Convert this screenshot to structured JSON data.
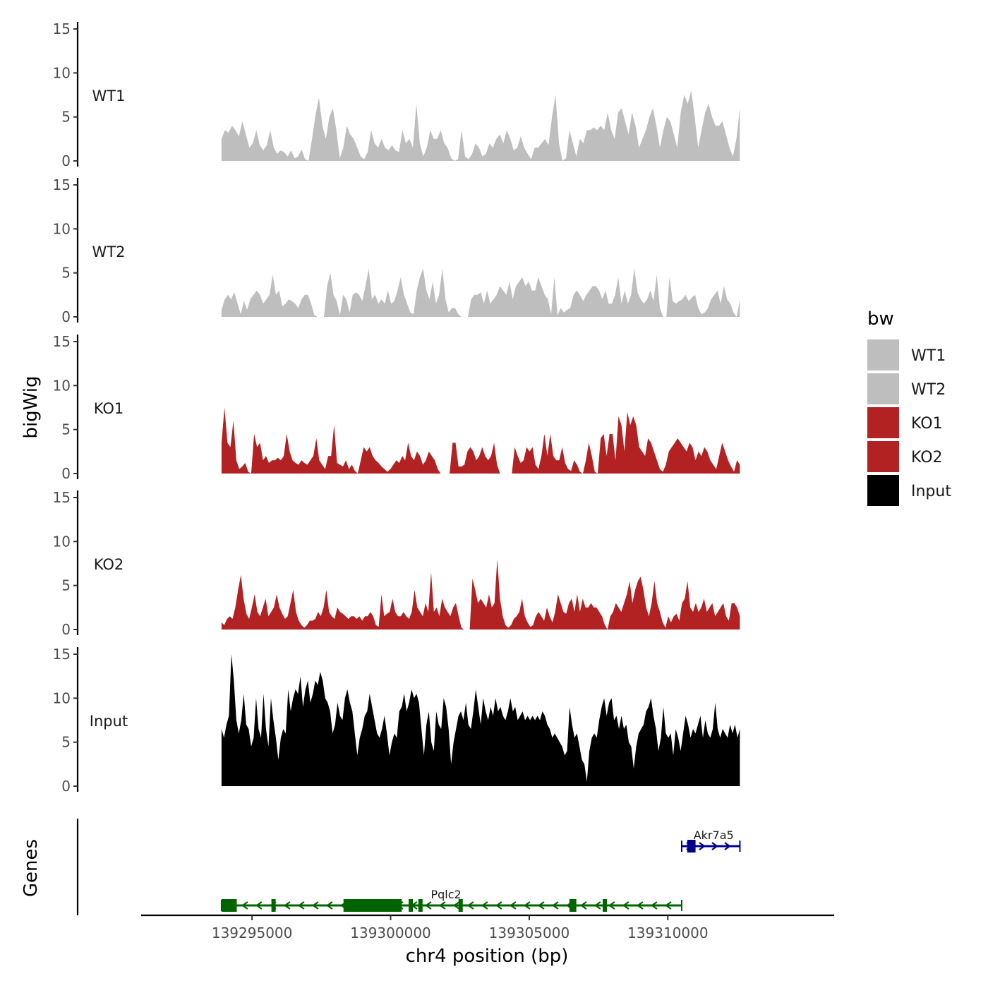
{
  "chart_data": {
    "type": "area",
    "y_axis_title": "bigWig",
    "x_axis_title": "chr4 position (bp)",
    "genes_axis_title": "Genes",
    "xlim": [
      139291000,
      139316000
    ],
    "data_range": [
      139293900,
      139312600
    ],
    "x_ticks": [
      139295000,
      139300000,
      139305000,
      139310000
    ],
    "x_tick_labels": [
      "139295000",
      "139300000",
      "139305000",
      "139310000"
    ],
    "ylim": [
      0,
      15
    ],
    "y_ticks": [
      0,
      5,
      10,
      15
    ],
    "y_tick_labels": [
      "0",
      "5",
      "10",
      "15"
    ],
    "legend": {
      "title": "bw",
      "entries": [
        {
          "label": "WT1",
          "color": "#bebebe"
        },
        {
          "label": "WT2",
          "color": "#bebebe"
        },
        {
          "label": "KO1",
          "color": "#b22222"
        },
        {
          "label": "KO2",
          "color": "#b22222"
        },
        {
          "label": "Input",
          "color": "#000000"
        }
      ]
    },
    "series": [
      {
        "name": "WT1",
        "color": "#bebebe",
        "values": [
          2.5,
          3.5,
          3.2,
          4.0,
          3.5,
          2.8,
          4.5,
          3.0,
          1.5,
          2.0,
          3.5,
          1.8,
          1.2,
          1.8,
          3.5,
          1.5,
          0.8,
          1.2,
          1.0,
          0.5,
          1.2,
          0.3,
          0.5,
          1.3,
          0.2,
          0,
          2.5,
          5.2,
          7.2,
          4.0,
          2.5,
          5.0,
          6.0,
          3.5,
          0.3,
          1.5,
          4.0,
          3.0,
          2.5,
          1.5,
          0.5,
          0.2,
          1.0,
          3.5,
          2.0,
          1.5,
          2.5,
          1.5,
          1.2,
          1.8,
          1.2,
          1.0,
          3.5,
          2.0,
          2.5,
          1.5,
          6.5,
          2.0,
          0.5,
          1.5,
          3.5,
          2.5,
          2.5,
          3.5,
          2.0,
          1.5,
          0.3,
          0,
          0.2,
          3.5,
          0.5,
          0.2,
          0.8,
          2.0,
          1.5,
          0.5,
          0.8,
          2.0,
          1.5,
          2.5,
          3.0,
          2.0,
          3.5,
          2.5,
          1.2,
          1.5,
          2.8,
          1.5,
          0.8,
          0.2,
          1.5,
          1.5,
          2.0,
          2.5,
          1.8,
          5.0,
          7.5,
          2.0,
          0,
          0.3,
          3.5,
          2.0,
          0.5,
          2.5,
          2.0,
          3.5,
          3.5,
          3.8,
          3.5,
          4.0,
          3.5,
          5.5,
          3.5,
          2.5,
          5.5,
          6.0,
          4.5,
          3.0,
          5.5,
          4.0,
          1.5,
          2.5,
          3.5,
          5.0,
          6.0,
          4.0,
          1.5,
          3.5,
          5.0,
          4.5,
          3.0,
          1.5,
          5.5,
          7.5,
          6.5,
          8.0,
          5.0,
          1.5,
          3.5,
          5.5,
          6.5,
          5.0,
          4.0,
          4.0,
          4.5,
          3.0,
          1.5,
          0.5,
          2.5,
          6.0
        ]
      },
      {
        "name": "WT2",
        "color": "#bebebe",
        "values": [
          0.8,
          2.0,
          2.5,
          2.0,
          2.8,
          1.5,
          0.3,
          1.8,
          0.8,
          2.0,
          2.5,
          3.0,
          2.5,
          1.5,
          2.0,
          2.5,
          4.8,
          2.5,
          3.0,
          1.2,
          1.5,
          2.0,
          1.8,
          1.5,
          1.0,
          2.0,
          2.5,
          2.5,
          1.5,
          0.2,
          0,
          0,
          0,
          3.5,
          5.0,
          2.5,
          1.8,
          0.2,
          2.5,
          2.0,
          0.5,
          2.5,
          2.8,
          2.5,
          1.8,
          3.5,
          5.5,
          2.0,
          2.5,
          1.5,
          2.0,
          1.5,
          3.0,
          1.5,
          1.8,
          3.0,
          4.5,
          2.5,
          1.5,
          0.5,
          0.3,
          3.0,
          4.5,
          5.5,
          3.0,
          2.0,
          4.0,
          1.5,
          2.5,
          5.5,
          2.0,
          0.5,
          1.0,
          1.0,
          0.3,
          0,
          0,
          0,
          2.0,
          2.5,
          2.5,
          2.8,
          1.5,
          3.0,
          1.5,
          2.0,
          2.5,
          3.5,
          3.0,
          2.5,
          4.0,
          2.0,
          3.5,
          4.0,
          4.5,
          3.5,
          4.0,
          3.0,
          3.0,
          4.5,
          3.5,
          2.5,
          2.0,
          0.3,
          4.5,
          0.2,
          1.0,
          0.5,
          0.8,
          1.0,
          2.5,
          3.0,
          2.5,
          1.8,
          2.5,
          3.0,
          3.5,
          3.5,
          3.0,
          2.0,
          3.0,
          1.5,
          1.5,
          2.5,
          4.5,
          1.5,
          3.0,
          1.5,
          2.5,
          5.5,
          2.8,
          2.0,
          1.5,
          2.0,
          3.0,
          1.8,
          4.8,
          1.0,
          0,
          0,
          4.5,
          1.8,
          1.5,
          1.8,
          2.0,
          2.5,
          1.8,
          2.2,
          2.5,
          1.0,
          0.3,
          0.5,
          1.0,
          2.0,
          2.5,
          3.0,
          1.5,
          3.5,
          2.0,
          1.5,
          0.5,
          0,
          2.0
        ]
      },
      {
        "name": "KO1",
        "color": "#b22222",
        "values": [
          3.5,
          7.5,
          3.5,
          3.0,
          6.0,
          1.5,
          0.5,
          0.8,
          1.2,
          0.2,
          0,
          4.5,
          3.0,
          3.5,
          1.5,
          2.0,
          1.2,
          1.5,
          1.5,
          1.8,
          1.5,
          2.0,
          4.5,
          2.5,
          1.5,
          1.2,
          1.0,
          1.5,
          1.2,
          1.0,
          1.5,
          2.0,
          4.0,
          1.5,
          1.0,
          0.5,
          2.0,
          2.0,
          5.5,
          1.2,
          1.0,
          0.8,
          1.5,
          0.5,
          1.0,
          0.3,
          0,
          1.5,
          3.0,
          2.5,
          3.0,
          2.0,
          1.5,
          1.2,
          0.8,
          0.5,
          0.2,
          0.5,
          1.0,
          1.5,
          1.2,
          2.0,
          1.5,
          3.5,
          2.0,
          1.5,
          2.5,
          2.0,
          1.0,
          1.5,
          2.5,
          2.0,
          1.5,
          0.5,
          0,
          0,
          0,
          0,
          3.5,
          3.5,
          0.8,
          0.8,
          1.0,
          2.5,
          3.0,
          2.5,
          1.5,
          2.0,
          3.0,
          2.0,
          1.5,
          2.0,
          3.5,
          1.0,
          0,
          0,
          0,
          0,
          0,
          3.0,
          2.0,
          1.2,
          1.5,
          3.0,
          2.5,
          3.0,
          1.0,
          0.5,
          2.0,
          4.5,
          2.0,
          4.5,
          2.0,
          1.5,
          1.5,
          3.0,
          1.2,
          0.5,
          0.3,
          1.5,
          1.0,
          0.2,
          0,
          1.5,
          3.5,
          2.0,
          0.2,
          0,
          4.0,
          4.5,
          2.0,
          4.5,
          4.5,
          1.5,
          6.5,
          5.5,
          2.5,
          7.0,
          5.5,
          6.5,
          5.5,
          3.0,
          2.5,
          2.0,
          4.0,
          3.5,
          2.5,
          1.5,
          0.5,
          0.2,
          1.0,
          2.5,
          3.0,
          3.5,
          4.0,
          3.5,
          3.0,
          2.5,
          3.5,
          3.0,
          1.5,
          2.5,
          2.0,
          3.0,
          2.5,
          1.5,
          1.0,
          0.5,
          2.0,
          3.5,
          2.5,
          1.5,
          0.8,
          0.2,
          1.5,
          1.0
        ]
      },
      {
        "name": "KO2",
        "color": "#b22222",
        "values": [
          0.8,
          0.5,
          1.2,
          1.5,
          1.2,
          2.5,
          4.5,
          6.2,
          3.5,
          1.8,
          1.2,
          2.5,
          4.0,
          2.0,
          1.5,
          2.5,
          3.5,
          1.5,
          2.0,
          2.5,
          4.0,
          2.5,
          1.8,
          1.2,
          1.5,
          3.0,
          4.5,
          2.0,
          1.0,
          0.5,
          0.2,
          0.5,
          1.0,
          1.0,
          1.2,
          2.0,
          1.5,
          2.5,
          4.5,
          2.0,
          1.5,
          1.2,
          2.5,
          2.0,
          1.8,
          1.5,
          1.2,
          1.5,
          1.5,
          1.2,
          1.5,
          1.0,
          1.5,
          1.5,
          2.0,
          1.5,
          0.5,
          0.3,
          4.0,
          1.5,
          1.8,
          2.0,
          3.5,
          2.0,
          1.5,
          1.5,
          2.0,
          1.5,
          1.2,
          2.0,
          4.5,
          2.5,
          2.0,
          1.5,
          3.0,
          2.0,
          6.5,
          2.0,
          2.5,
          1.5,
          3.5,
          2.5,
          2.0,
          1.5,
          2.5,
          3.0,
          1.5,
          0.2,
          0,
          0,
          0,
          5.8,
          4.5,
          3.0,
          3.5,
          3.0,
          2.5,
          4.0,
          2.5,
          3.0,
          8.0,
          3.5,
          1.5,
          0.5,
          0.2,
          0.5,
          1.2,
          1.5,
          2.0,
          3.5,
          1.5,
          0.8,
          0.3,
          0.5,
          1.5,
          2.0,
          1.5,
          1.0,
          2.5,
          1.5,
          0.8,
          2.0,
          4.0,
          3.0,
          2.0,
          1.8,
          3.0,
          3.5,
          2.0,
          4.0,
          2.0,
          3.5,
          2.5,
          2.5,
          3.0,
          2.5,
          2.5,
          2.0,
          1.5,
          0.5,
          0,
          1.5,
          2.0,
          3.0,
          2.5,
          2.0,
          3.0,
          4.0,
          5.5,
          3.0,
          4.5,
          5.5,
          6.0,
          4.5,
          2.5,
          1.5,
          3.0,
          5.5,
          3.0,
          2.0,
          0.8,
          0.2,
          1.5,
          0.8,
          1.5,
          1.8,
          1.0,
          3.0,
          3.5,
          5.5,
          2.5,
          2.0,
          3.0,
          2.0,
          2.5,
          3.5,
          2.0,
          2.5,
          3.0,
          1.5,
          2.0,
          2.5,
          3.0,
          1.5,
          1.0,
          3.0,
          3.0,
          2.5,
          1.5
        ]
      },
      {
        "name": "Input",
        "color": "#000000",
        "values": [
          6.5,
          5.5,
          7.0,
          8.0,
          15.0,
          12.0,
          7.5,
          6.0,
          7.5,
          10.5,
          7.0,
          6.5,
          4.5,
          5.5,
          10.0,
          6.5,
          5.5,
          10.5,
          6.5,
          4.5,
          10.0,
          7.5,
          5.5,
          3.0,
          5.5,
          6.5,
          6.0,
          11.0,
          8.5,
          10.0,
          11.0,
          10.5,
          12.5,
          9.0,
          11.0,
          12.0,
          9.5,
          10.5,
          12.0,
          11.5,
          13.0,
          12.0,
          10.0,
          9.5,
          8.5,
          6.0,
          7.0,
          9.5,
          8.0,
          7.5,
          10.0,
          11.0,
          9.5,
          8.5,
          6.0,
          3.5,
          5.5,
          6.5,
          8.0,
          8.5,
          10.5,
          9.0,
          7.5,
          6.0,
          5.5,
          6.5,
          8.0,
          6.0,
          3.5,
          5.0,
          6.0,
          5.5,
          8.5,
          9.0,
          10.5,
          8.5,
          9.5,
          11.0,
          10.0,
          10.5,
          9.5,
          6.5,
          3.5,
          7.0,
          8.5,
          5.0,
          4.0,
          8.5,
          7.0,
          6.5,
          10.0,
          9.0,
          6.5,
          2.5,
          5.0,
          6.5,
          8.0,
          8.5,
          7.5,
          9.5,
          7.0,
          6.5,
          8.5,
          11.0,
          9.0,
          7.0,
          10.0,
          8.5,
          7.5,
          9.0,
          8.0,
          10.0,
          8.5,
          9.0,
          8.0,
          7.5,
          8.5,
          10.0,
          8.5,
          9.0,
          7.5,
          8.0,
          8.5,
          7.5,
          8.0,
          7.5,
          8.0,
          7.5,
          8.0,
          7.5,
          8.5,
          8.0,
          7.0,
          6.5,
          5.5,
          6.0,
          5.5,
          5.0,
          4.5,
          3.5,
          4.0,
          9.0,
          7.0,
          5.5,
          6.0,
          4.5,
          3.0,
          2.5,
          0.5,
          4.0,
          5.5,
          6.0,
          5.5,
          7.5,
          9.0,
          10.0,
          8.0,
          9.5,
          10.0,
          7.5,
          8.0,
          6.5,
          8.0,
          6.5,
          7.0,
          5.0,
          4.5,
          2.0,
          4.5,
          6.0,
          6.5,
          7.0,
          8.5,
          9.0,
          10.0,
          8.0,
          6.5,
          4.0,
          5.5,
          9.0,
          6.0,
          5.5,
          6.0,
          3.5,
          6.5,
          5.5,
          4.0,
          6.0,
          8.0,
          7.0,
          5.5,
          6.5,
          6.0,
          7.0,
          8.0,
          5.5,
          7.5,
          6.0,
          5.5,
          6.5,
          9.5,
          6.5,
          5.5,
          6.5,
          6.0,
          5.5,
          7.0,
          6.0,
          7.0,
          5.5,
          6.5
        ]
      }
    ],
    "genes": [
      {
        "name": "Pqlc2",
        "strand": "-",
        "color": "#006400",
        "start": 139293900,
        "end": 139310500,
        "exons": [
          [
            139293900,
            139294450
          ],
          [
            139295700,
            139295850
          ],
          [
            139298300,
            139300400
          ],
          [
            139300650,
            139300750
          ],
          [
            139301000,
            139301150
          ],
          [
            139302450,
            139302600
          ],
          [
            139306450,
            139306700
          ],
          [
            139307650,
            139307750
          ]
        ]
      },
      {
        "name": "Akr7a5",
        "strand": "+",
        "color": "#00008b",
        "start": 139310500,
        "end": 139312600,
        "exons": [
          [
            139310700,
            139311000
          ]
        ]
      }
    ]
  }
}
